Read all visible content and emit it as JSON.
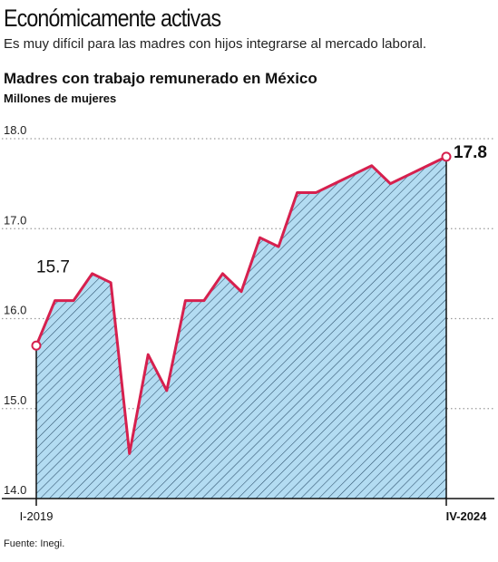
{
  "header": {
    "title": "Económicamente activas",
    "subtitle": "Es muy difícil para las madres con hijos integrarse al mercado laboral."
  },
  "footer": {
    "source": "Fuente: Inegi."
  },
  "colors": {
    "line": "#d6204e",
    "fill": "#b3dcf2",
    "hatch": "#2b4e6a",
    "grid": "#9a9a9a"
  },
  "chart_data": {
    "type": "area",
    "title": "Madres con trabajo remunerado en México",
    "ylabel": "Millones de mujeres",
    "ylim": [
      14.0,
      18.0
    ],
    "yticks": [
      "18.0",
      "17.0",
      "16.0",
      "15.0",
      "14.0"
    ],
    "grid": true,
    "x_labels": {
      "first": "I-2019",
      "last": "IV-2024"
    },
    "annotations": {
      "first": "15.7",
      "last": "17.8"
    },
    "series": [
      {
        "values": [
          15.7,
          16.2,
          16.2,
          16.5,
          16.4,
          14.5,
          15.6,
          15.2,
          16.2,
          16.2,
          16.5,
          16.3,
          16.9,
          16.8,
          17.4,
          17.4,
          17.5,
          17.6,
          17.7,
          17.5,
          17.6,
          17.7,
          17.8
        ]
      }
    ]
  }
}
